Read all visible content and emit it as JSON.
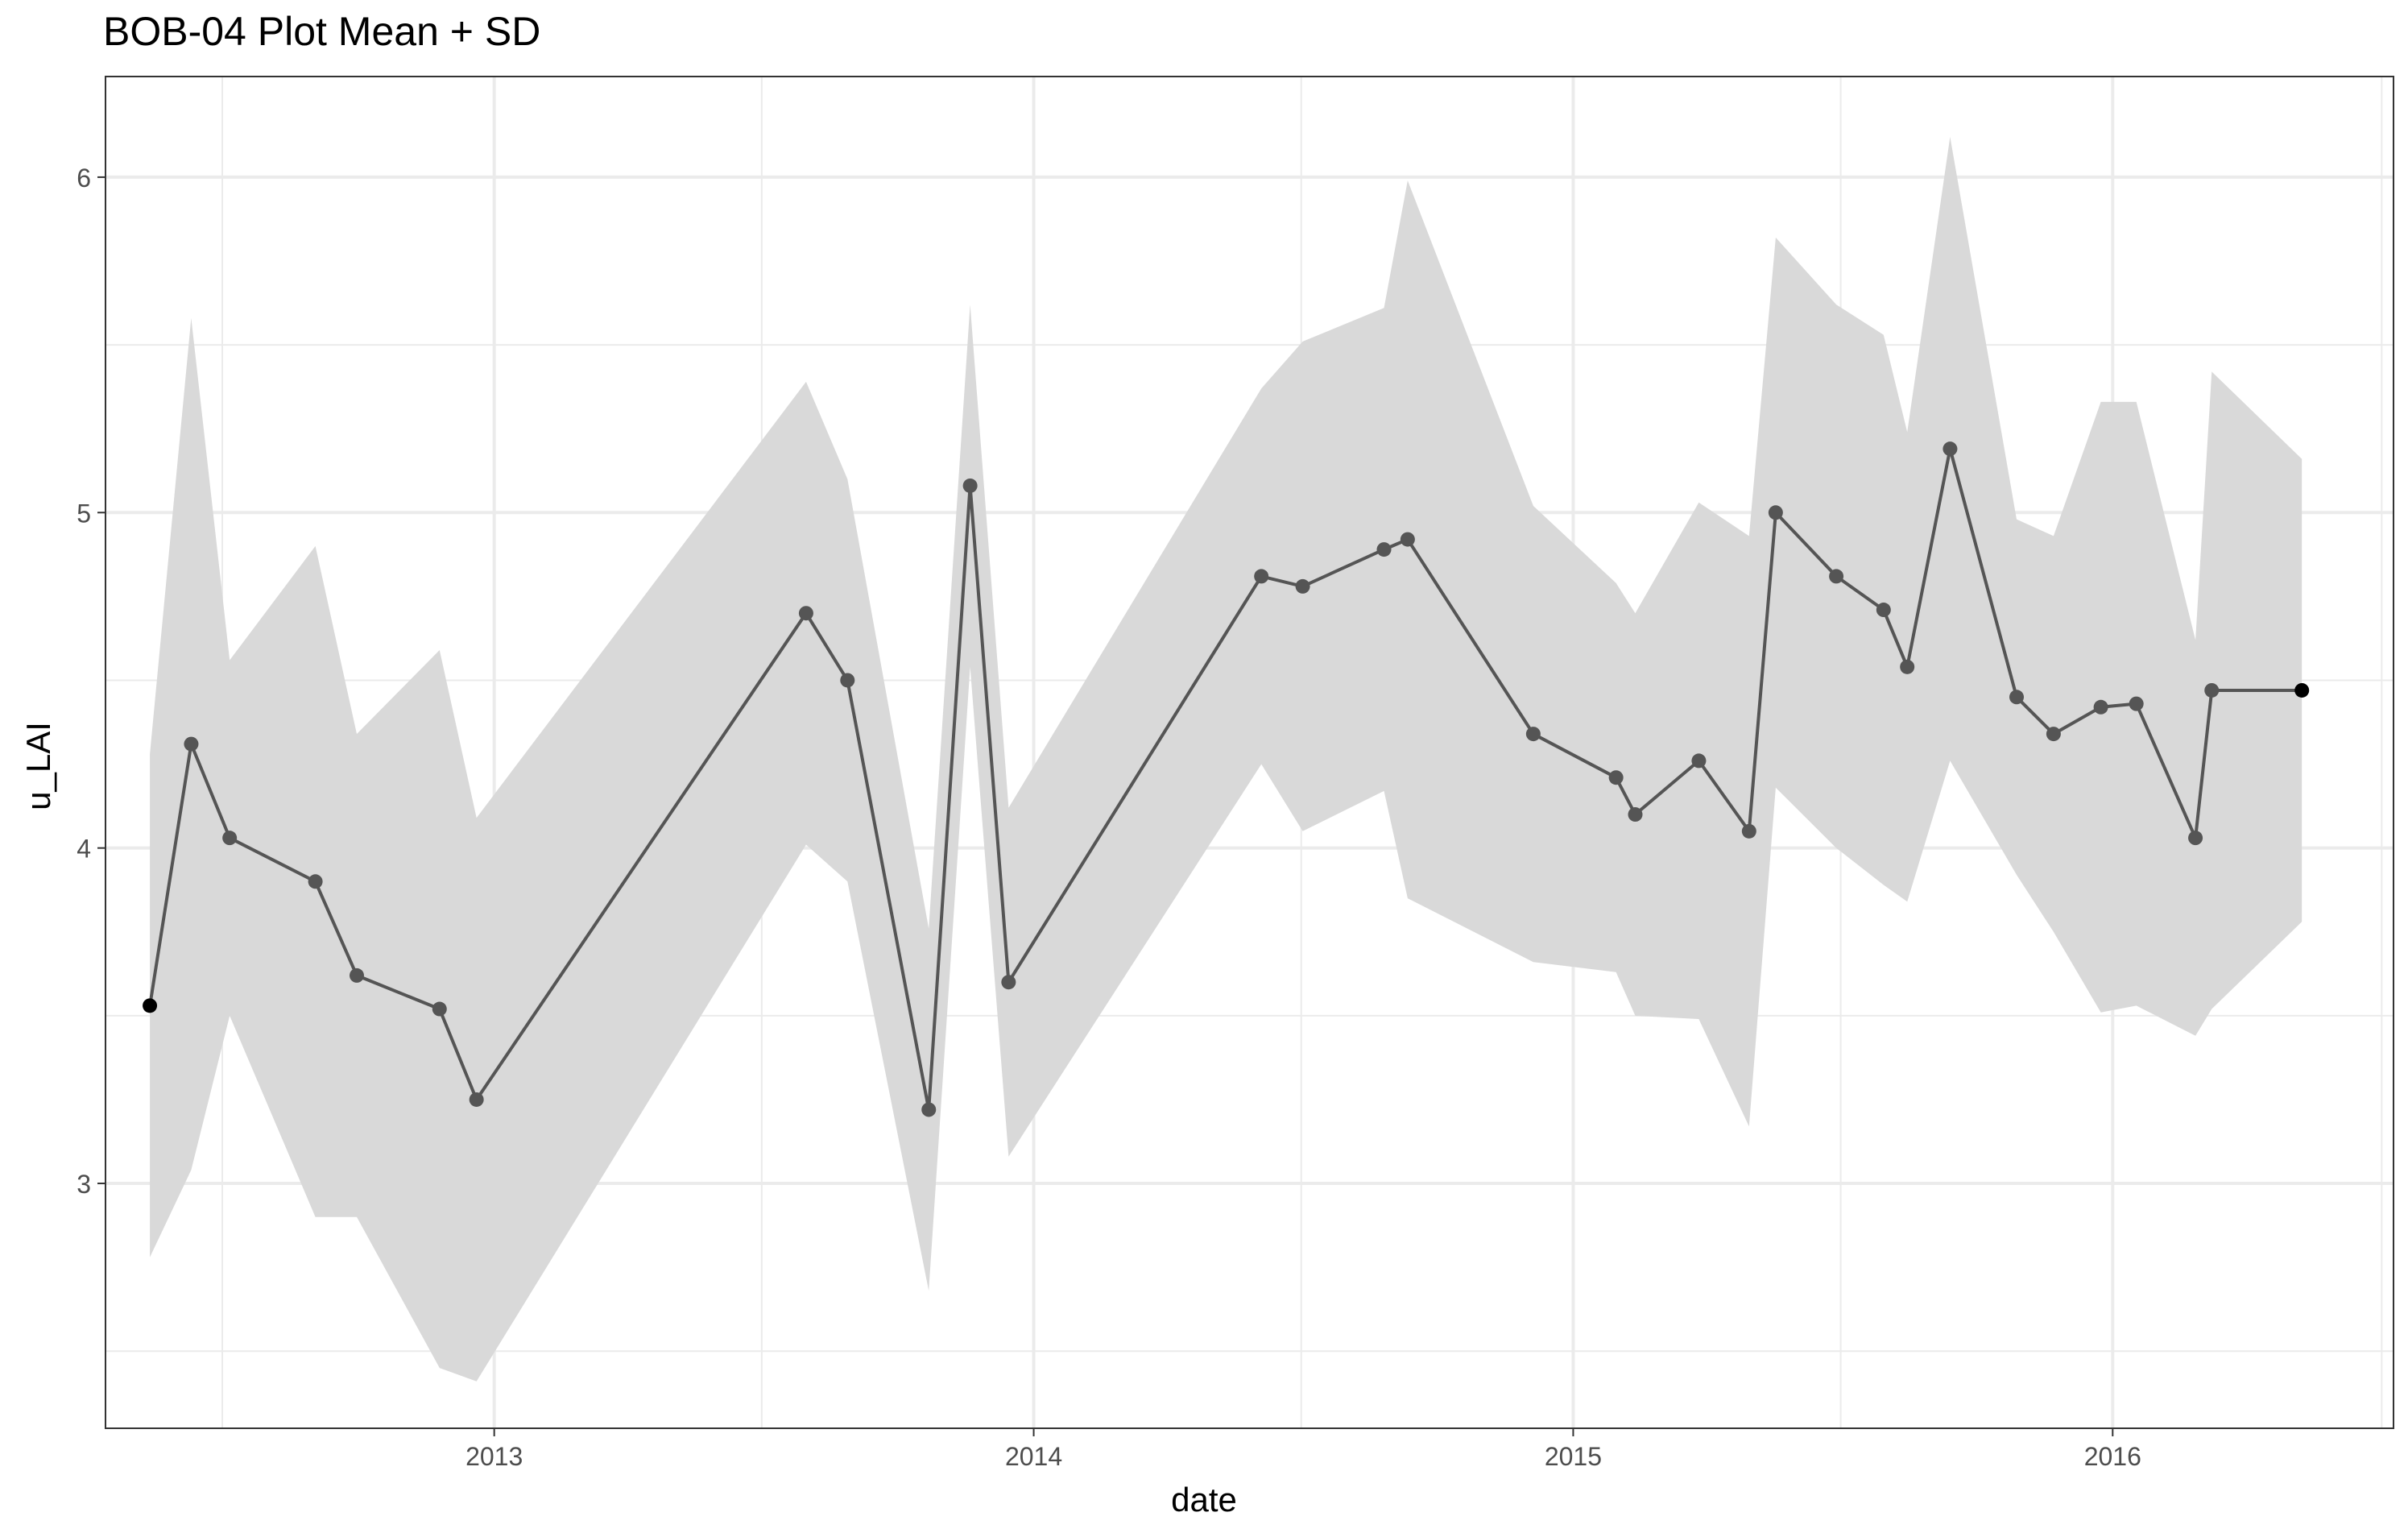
{
  "chart_data": {
    "type": "line",
    "title": "BOB-04 Plot Mean + SD",
    "xlabel": "date",
    "ylabel": "u_LAI",
    "x_ticks": [
      "2013",
      "2014",
      "2015",
      "2016"
    ],
    "y_ticks": [
      3,
      4,
      5,
      6
    ],
    "xlim": [
      "2012-04-13",
      "2016-07-09"
    ],
    "ylim": [
      2.27,
      6.3
    ],
    "grid": true,
    "ribbon": "mean ± SD",
    "colors": {
      "line": "#555555",
      "point": "#555555",
      "endpoint": "#000000",
      "ribbon": "#d9d9d9",
      "grid": "#ebebeb"
    },
    "series": [
      {
        "points": [
          {
            "date": "2012-05-13",
            "mean": 3.53,
            "sd": 0.75
          },
          {
            "date": "2012-06-10",
            "mean": 4.31,
            "sd": 1.27
          },
          {
            "date": "2012-07-06",
            "mean": 4.03,
            "sd": 0.53
          },
          {
            "date": "2012-09-02",
            "mean": 3.9,
            "sd": 1.0
          },
          {
            "date": "2012-09-30",
            "mean": 3.62,
            "sd": 0.72
          },
          {
            "date": "2012-11-25",
            "mean": 3.52,
            "sd": 1.07
          },
          {
            "date": "2012-12-20",
            "mean": 3.25,
            "sd": 0.84
          },
          {
            "date": "2013-07-31",
            "mean": 4.7,
            "sd": 0.69
          },
          {
            "date": "2013-08-28",
            "mean": 4.5,
            "sd": 0.6
          },
          {
            "date": "2013-10-22",
            "mean": 3.22,
            "sd": 0.54
          },
          {
            "date": "2013-11-19",
            "mean": 5.08,
            "sd": 0.54
          },
          {
            "date": "2013-12-15",
            "mean": 3.6,
            "sd": 0.52
          },
          {
            "date": "2014-06-04",
            "mean": 4.81,
            "sd": 0.56
          },
          {
            "date": "2014-07-02",
            "mean": 4.78,
            "sd": 0.73
          },
          {
            "date": "2014-08-26",
            "mean": 4.89,
            "sd": 0.72
          },
          {
            "date": "2014-09-11",
            "mean": 4.92,
            "sd": 1.07
          },
          {
            "date": "2014-12-05",
            "mean": 4.34,
            "sd": 0.68
          },
          {
            "date": "2015-01-30",
            "mean": 4.21,
            "sd": 0.58
          },
          {
            "date": "2015-02-12",
            "mean": 4.1,
            "sd": 0.6
          },
          {
            "date": "2015-03-27",
            "mean": 4.26,
            "sd": 0.77
          },
          {
            "date": "2015-04-30",
            "mean": 4.05,
            "sd": 0.88
          },
          {
            "date": "2015-05-18",
            "mean": 5.0,
            "sd": 0.82
          },
          {
            "date": "2015-06-28",
            "mean": 4.81,
            "sd": 0.81
          },
          {
            "date": "2015-07-30",
            "mean": 4.71,
            "sd": 0.82
          },
          {
            "date": "2015-08-15",
            "mean": 4.54,
            "sd": 0.7
          },
          {
            "date": "2015-09-13",
            "mean": 5.19,
            "sd": 0.93
          },
          {
            "date": "2015-10-28",
            "mean": 4.45,
            "sd": 0.53
          },
          {
            "date": "2015-11-22",
            "mean": 4.34,
            "sd": 0.59
          },
          {
            "date": "2015-12-24",
            "mean": 4.42,
            "sd": 0.91
          },
          {
            "date": "2016-01-17",
            "mean": 4.43,
            "sd": 0.9
          },
          {
            "date": "2016-02-26",
            "mean": 4.03,
            "sd": 0.59
          },
          {
            "date": "2016-03-08",
            "mean": 4.47,
            "sd": 0.95
          },
          {
            "date": "2016-05-08",
            "mean": 4.47,
            "sd": 0.69
          }
        ]
      }
    ]
  }
}
